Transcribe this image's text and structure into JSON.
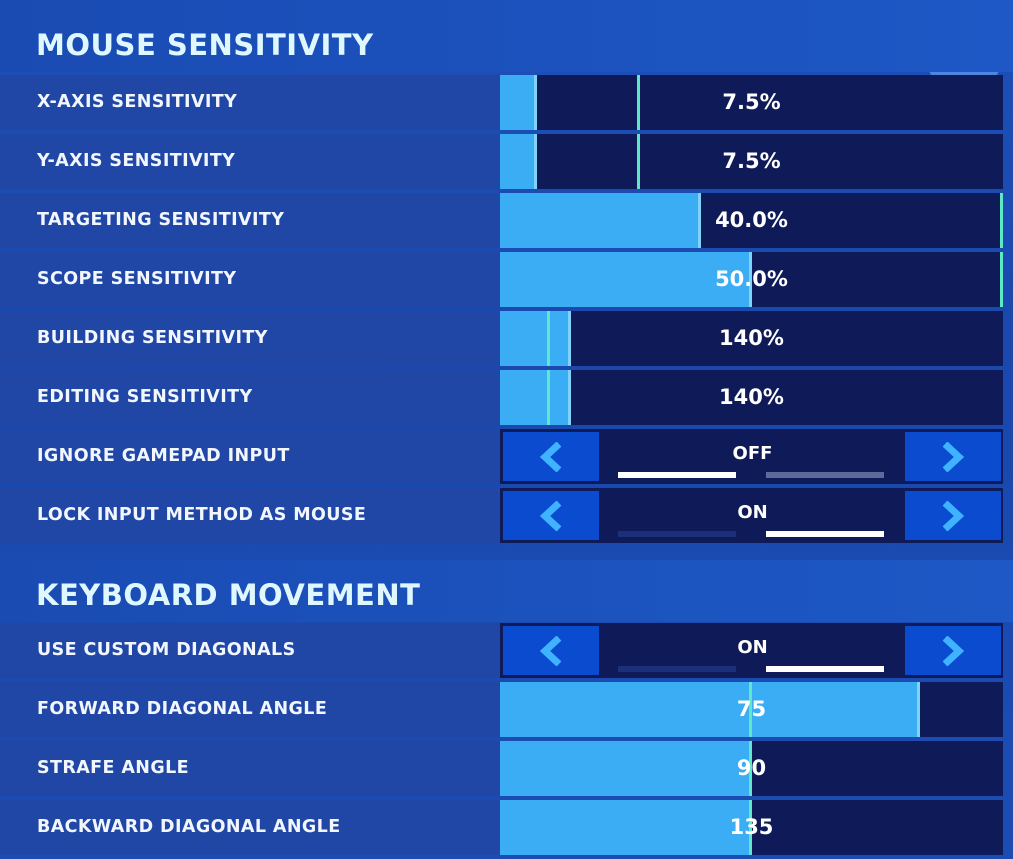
{
  "sections": {
    "mouse": {
      "title": "MOUSE SENSITIVITY"
    },
    "keyboard": {
      "title": "KEYBOARD MOVEMENT"
    }
  },
  "mouse_rows": {
    "x_axis": {
      "label": "X-AXIS SENSITIVITY",
      "value": "7.5%",
      "fill_fraction": 0.075
    },
    "y_axis": {
      "label": "Y-AXIS SENSITIVITY",
      "value": "7.5%",
      "fill_fraction": 0.075
    },
    "targeting": {
      "label": "TARGETING SENSITIVITY",
      "value": "40.0%",
      "fill_fraction": 0.4
    },
    "scope": {
      "label": "SCOPE SENSITIVITY",
      "value": "50.0%",
      "fill_fraction": 0.5
    },
    "building": {
      "label": "BUILDING SENSITIVITY",
      "value": "140%",
      "fill_fraction": 0.14
    },
    "editing": {
      "label": "EDITING SENSITIVITY",
      "value": "140%",
      "fill_fraction": 0.14
    },
    "ignore_gamepad": {
      "label": "IGNORE GAMEPAD INPUT",
      "value": "OFF"
    },
    "lock_input": {
      "label": "LOCK INPUT METHOD AS MOUSE",
      "value": "ON"
    }
  },
  "keyboard_rows": {
    "custom_diagonals": {
      "label": "USE CUSTOM DIAGONALS",
      "value": "ON"
    },
    "forward_diagonal": {
      "label": "FORWARD DIAGONAL ANGLE",
      "value": "75",
      "fill_fraction": 0.83
    },
    "strafe": {
      "label": "STRAFE ANGLE",
      "value": "90",
      "fill_fraction": 0.5
    },
    "backward_diagonal": {
      "label": "BACKWARD DIAGONAL ANGLE",
      "value": "135",
      "fill_fraction": 0.5
    }
  },
  "icons": {
    "left": "chevron-left-icon",
    "right": "chevron-right-icon",
    "logo": "goggles-logo-icon"
  },
  "colors": {
    "fill": "#3aadf5",
    "track": "#0f1b58",
    "marker": "#5fe8c6",
    "row": "#2047a5",
    "title": "#dff8ff"
  }
}
